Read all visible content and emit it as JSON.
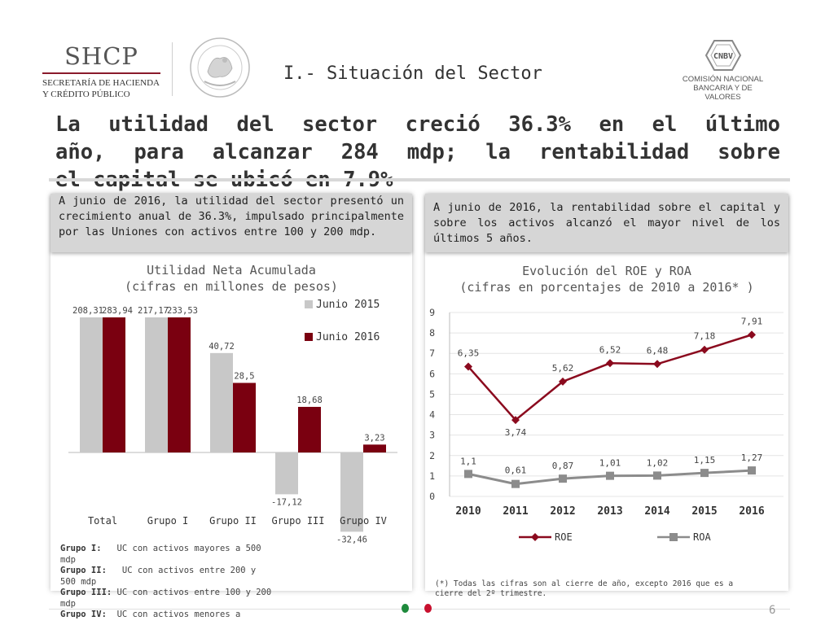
{
  "header": {
    "shcp_big": "SHCP",
    "shcp_line1": "SECRETARÍA DE HACIENDA",
    "shcp_line2": "Y CRÉDITO PÚBLICO",
    "section_title": "I.- Situación del Sector",
    "cnbv_abbr": "CNBV",
    "cnbv_line1": "COMISIÓN NACIONAL",
    "cnbv_line2": "BANCARIA Y DE VALORES"
  },
  "headline": {
    "line1": "La utilidad del sector creció 36.3% en el último",
    "line2": "año, para alcanzar 284 mdp; la rentabilidad sobre",
    "line3": "el capital se ubicó en 7.9%"
  },
  "callouts": {
    "left": "A junio de 2016, la utilidad del sector presentó un crecimiento anual de 36.3%, impulsado principalmente por las Uniones con activos entre 100 y 200 mdp.",
    "right": "A junio de 2016, la rentabilidad sobre el capital y sobre los activos alcanzó el mayor nivel de los últimos 5 años."
  },
  "chart_data": [
    {
      "type": "bar",
      "title": "Utilidad Neta Acumulada",
      "subtitle": "(cifras en millones de pesos)",
      "categories": [
        "Total",
        "Grupo I",
        "Grupo II",
        "Grupo III",
        "Grupo IV"
      ],
      "series": [
        {
          "name": "Junio 2015",
          "values": [
            208.31,
            217.17,
            40.72,
            -17.12,
            -32.46
          ],
          "labels": [
            "208,31",
            "217,17",
            "40,72",
            "-17,12",
            "-32,46"
          ],
          "color": "#c8c8c8"
        },
        {
          "name": "Junio 2016",
          "values": [
            283.94,
            233.53,
            28.5,
            18.68,
            3.23
          ],
          "labels": [
            "283,94",
            "233,53",
            "28,5",
            "18,68",
            "3,23"
          ],
          "color": "#7a0010"
        }
      ],
      "axis_broken": true,
      "legend": "right"
    },
    {
      "type": "line",
      "title": "Evolución del ROE y ROA",
      "subtitle": "(cifras en porcentajes de 2010 a 2016* )",
      "x": [
        "2010",
        "2011",
        "2012",
        "2013",
        "2014",
        "2015",
        "2016"
      ],
      "ylim": [
        0,
        9
      ],
      "yticks": [
        "0",
        "1",
        "2",
        "3",
        "4",
        "5",
        "6",
        "7",
        "8",
        "9"
      ],
      "grid": true,
      "legend": "bottom",
      "series": [
        {
          "name": "ROE",
          "values": [
            6.35,
            3.74,
            5.62,
            6.52,
            6.48,
            7.18,
            7.91
          ],
          "labels": [
            "6,35",
            "3,74",
            "5,62",
            "6,52",
            "6,48",
            "7,18",
            "7,91"
          ],
          "color": "#8b0a1e",
          "marker": "diamond"
        },
        {
          "name": "ROA",
          "values": [
            1.1,
            0.61,
            0.87,
            1.01,
            1.02,
            1.15,
            1.27
          ],
          "labels": [
            "1,1",
            "0,61",
            "0,87",
            "1,01",
            "1,02",
            "1,15",
            "1,27"
          ],
          "color": "#8c8c8c",
          "marker": "square"
        }
      ]
    }
  ],
  "notes": [
    {
      "key": "Grupo I:",
      "text": "UC con activos mayores a 500 mdp"
    },
    {
      "key": "Grupo II:",
      "text": "UC con activos entre 200 y 500 mdp"
    },
    {
      "key": "Grupo III:",
      "text": "UC con activos entre 100 y 200 mdp"
    },
    {
      "key": "Grupo IV:",
      "text": "UC con activos menores a"
    }
  ],
  "footnote": "(*) Todas las cifras son al cierre de año, excepto 2016 que es a cierre del 2º trimestre.",
  "footer": {
    "page_number": "6",
    "dot_green": "#1e8a3c",
    "dot_red": "#c8102e"
  }
}
